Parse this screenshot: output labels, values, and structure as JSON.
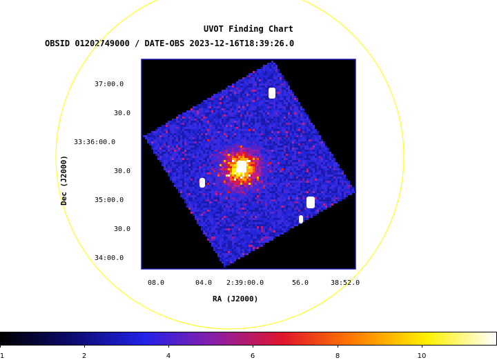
{
  "title": "UVOT Finding Chart",
  "subtitle": "OBSID 01202749000 / DATE-OBS 2023-12-16T18:39:26.0",
  "dec_axis": {
    "label": "Dec (J2000)",
    "ticks": [
      "37:00.0",
      "30.0",
      "33:36:00.0",
      "30.0",
      "35:00.0",
      "30.0",
      "34:00.0"
    ]
  },
  "ra_axis": {
    "label": "RA (J2000)",
    "ticks": [
      "08.0",
      "04.0",
      "2:39:00.0",
      "56.0",
      "38:52.0"
    ]
  },
  "colorbar": {
    "labels": [
      "1",
      "2",
      "4",
      "6",
      "8",
      "10"
    ],
    "colors": [
      "#000000",
      "#0b0a6b",
      "#2222e8",
      "#8a1ea8",
      "#e0162a",
      "#ff7a00",
      "#fff000",
      "#ffffff"
    ]
  },
  "colors": {
    "circle": "#ffff33",
    "frame": "#1a1aa8",
    "background": "#000000"
  }
}
